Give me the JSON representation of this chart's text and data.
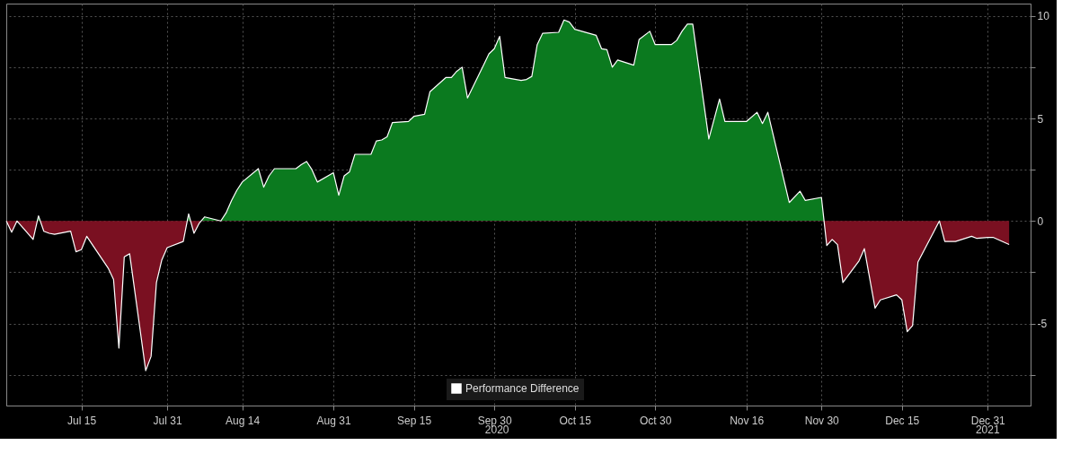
{
  "chart_data": {
    "type": "area",
    "x": [
      "2020-07-01",
      "2020-07-02",
      "2020-07-03",
      "2020-07-06",
      "2020-07-07",
      "2020-07-08",
      "2020-07-09",
      "2020-07-10",
      "2020-07-13",
      "2020-07-14",
      "2020-07-15",
      "2020-07-16",
      "2020-07-20",
      "2020-07-21",
      "2020-07-22",
      "2020-07-23",
      "2020-07-24",
      "2020-07-27",
      "2020-07-28",
      "2020-07-29",
      "2020-07-30",
      "2020-07-31",
      "2020-08-03",
      "2020-08-04",
      "2020-08-05",
      "2020-08-06",
      "2020-08-07",
      "2020-08-10",
      "2020-08-11",
      "2020-08-12",
      "2020-08-13",
      "2020-08-14",
      "2020-08-17",
      "2020-08-18",
      "2020-08-19",
      "2020-08-20",
      "2020-08-24",
      "2020-08-25",
      "2020-08-26",
      "2020-08-27",
      "2020-08-28",
      "2020-08-31",
      "2020-09-01",
      "2020-09-02",
      "2020-09-03",
      "2020-09-04",
      "2020-09-07",
      "2020-09-08",
      "2020-09-09",
      "2020-09-10",
      "2020-09-11",
      "2020-09-14",
      "2020-09-15",
      "2020-09-17",
      "2020-09-18",
      "2020-09-21",
      "2020-09-22",
      "2020-09-23",
      "2020-09-24",
      "2020-09-25",
      "2020-09-28",
      "2020-09-29",
      "2020-09-30",
      "2020-10-01",
      "2020-10-02",
      "2020-10-05",
      "2020-10-06",
      "2020-10-07",
      "2020-10-08",
      "2020-10-09",
      "2020-10-12",
      "2020-10-13",
      "2020-10-14",
      "2020-10-15",
      "2020-10-19",
      "2020-10-20",
      "2020-10-21",
      "2020-10-22",
      "2020-10-23",
      "2020-10-26",
      "2020-10-27",
      "2020-10-29",
      "2020-10-30",
      "2020-11-02",
      "2020-11-03",
      "2020-11-04",
      "2020-11-05",
      "2020-11-06",
      "2020-11-09",
      "2020-11-11",
      "2020-11-12",
      "2020-11-16",
      "2020-11-18",
      "2020-11-19",
      "2020-11-20",
      "2020-11-24",
      "2020-11-26",
      "2020-11-27",
      "2020-11-30",
      "2020-12-01",
      "2020-12-02",
      "2020-12-03",
      "2020-12-04",
      "2020-12-07",
      "2020-12-08",
      "2020-12-10",
      "2020-12-11",
      "2020-12-14",
      "2020-12-15",
      "2020-12-16",
      "2020-12-17",
      "2020-12-18",
      "2020-12-21",
      "2020-12-22",
      "2020-12-23",
      "2020-12-25",
      "2020-12-28",
      "2020-12-29",
      "2020-12-31",
      "2021-01-01",
      "2021-01-04"
    ],
    "series": [
      {
        "name": "Performance Difference",
        "color": "#ffffff",
        "values": [
          0,
          -0.55,
          0,
          -0.9,
          0.25,
          -0.5,
          -0.6,
          -0.65,
          -0.5,
          -1.5,
          -1.4,
          -0.75,
          -2.3,
          -2.85,
          -6.2,
          -1.75,
          -1.6,
          -7.3,
          -6.6,
          -3.0,
          -1.9,
          -1.3,
          -1.0,
          0.35,
          -0.6,
          -0.1,
          0.2,
          0,
          0.4,
          1.0,
          1.5,
          1.9,
          2.55,
          1.65,
          2.2,
          2.55,
          2.55,
          2.75,
          2.9,
          2.5,
          1.9,
          2.35,
          1.25,
          2.2,
          2.4,
          3.25,
          3.25,
          3.9,
          3.95,
          4.1,
          4.8,
          4.85,
          5.1,
          5.2,
          6.3,
          7.0,
          7.0,
          7.3,
          7.5,
          6.0,
          7.6,
          8.15,
          8.4,
          9.0,
          7.0,
          6.85,
          6.9,
          7.05,
          8.6,
          9.15,
          9.2,
          9.8,
          9.7,
          9.35,
          9.05,
          8.4,
          8.35,
          7.5,
          7.85,
          7.6,
          8.85,
          9.25,
          8.6,
          8.6,
          8.8,
          9.25,
          9.6,
          9.6,
          4.0,
          5.95,
          4.85,
          4.85,
          5.3,
          4.75,
          5.3,
          0.9,
          1.45,
          1.0,
          1.15,
          -1.2,
          -0.9,
          -1.15,
          -3.0,
          -1.95,
          -1.35,
          -4.25,
          -3.85,
          -3.6,
          -3.85,
          -5.4,
          -5.1,
          -2.0,
          -0.5,
          0,
          -1.0,
          -1.0,
          -0.75,
          -0.85,
          -0.8,
          -0.8,
          -1.15
        ]
      }
    ],
    "colors": [
      "#0b7a1f",
      "#7a1021"
    ],
    "xlim": [
      "2020-07-01",
      "2021-01-08"
    ],
    "xticks": [
      {
        "value": "2020-07-15",
        "label": "Jul 15"
      },
      {
        "value": "2020-07-31",
        "label": "Jul 31"
      },
      {
        "value": "2020-08-14",
        "label": "Aug 14"
      },
      {
        "value": "2020-08-31",
        "label": "Aug 31"
      },
      {
        "value": "2020-09-15",
        "label": "Sep 15"
      },
      {
        "value": "2020-09-30",
        "label": "Sep 30"
      },
      {
        "value": "2020-10-15",
        "label": "Oct 15"
      },
      {
        "value": "2020-10-30",
        "label": "Oct 30"
      },
      {
        "value": "2020-11-16",
        "label": "Nov 16"
      },
      {
        "value": "2020-11-30",
        "label": "Nov 30"
      },
      {
        "value": "2020-12-15",
        "label": "Dec 15"
      },
      {
        "value": "2020-12-31",
        "label": "Dec 31"
      }
    ],
    "annotations": [
      "2020",
      "2021"
    ],
    "ylim": [
      -9,
      10.6
    ],
    "yticks": [
      10,
      {
        "value": 7.5,
        "label": null
      },
      5,
      {
        "value": 2.5,
        "label": null
      },
      0,
      {
        "value": -2.5,
        "label": null
      },
      -5,
      {
        "value": -7.5,
        "label": null
      }
    ],
    "grid": true,
    "legend": "bottom"
  }
}
